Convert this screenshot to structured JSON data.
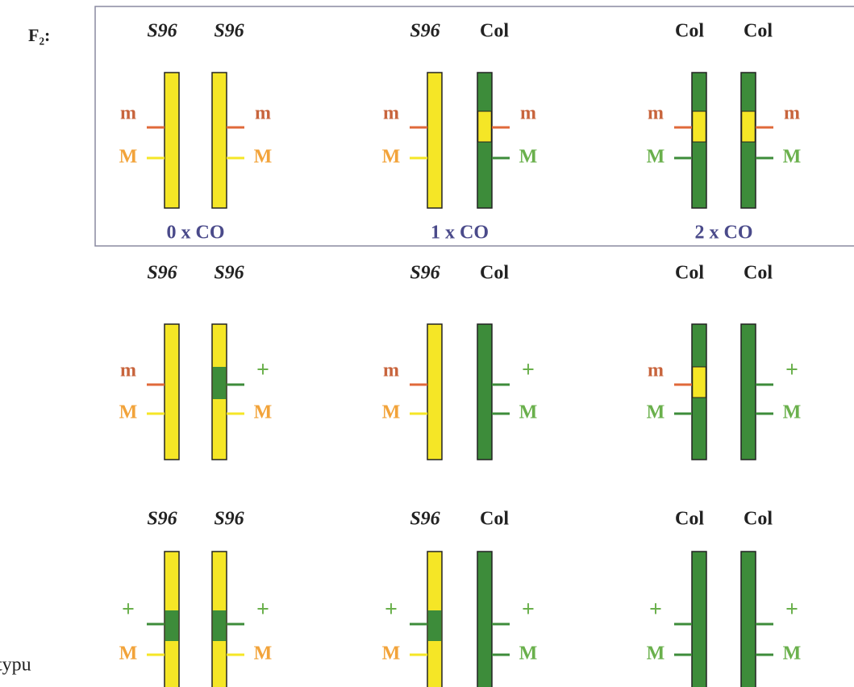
{
  "generation": "F₂:",
  "rows": [
    {
      "panels": [
        {
          "chromosomes": [
            {
              "genotype": "S96",
              "markers": [
                "m",
                "M"
              ]
            },
            {
              "genotype": "S96",
              "markers": [
                "m",
                "M"
              ]
            }
          ],
          "crossover": "0 x CO"
        },
        {
          "chromosomes": [
            {
              "genotype": "S96",
              "markers": [
                "m",
                "M"
              ]
            },
            {
              "genotype": "Col",
              "markers": [
                "m",
                "M"
              ]
            }
          ],
          "crossover": "1 x CO"
        },
        {
          "chromosomes": [
            {
              "genotype": "Col",
              "markers": [
                "m",
                "M"
              ]
            },
            {
              "genotype": "Col",
              "markers": [
                "m",
                "M"
              ]
            }
          ],
          "crossover": "2 x CO"
        }
      ]
    },
    {
      "panels": [
        {
          "chromosomes": [
            {
              "genotype": "S96",
              "markers": [
                "m",
                "M"
              ]
            },
            {
              "genotype": "S96",
              "markers": [
                "+",
                "M"
              ]
            }
          ]
        },
        {
          "chromosomes": [
            {
              "genotype": "S96",
              "markers": [
                "m",
                "M"
              ]
            },
            {
              "genotype": "Col",
              "markers": [
                "+",
                "M"
              ]
            }
          ]
        },
        {
          "chromosomes": [
            {
              "genotype": "Col",
              "markers": [
                "m",
                "M"
              ]
            },
            {
              "genotype": "Col",
              "markers": [
                "+",
                "M"
              ]
            }
          ]
        }
      ]
    },
    {
      "panels": [
        {
          "chromosomes": [
            {
              "genotype": "S96",
              "markers": [
                "+",
                "M"
              ]
            },
            {
              "genotype": "S96",
              "markers": [
                "+",
                "M"
              ]
            }
          ]
        },
        {
          "chromosomes": [
            {
              "genotype": "S96",
              "markers": [
                "+",
                "M"
              ]
            },
            {
              "genotype": "Col",
              "markers": [
                "+",
                "M"
              ]
            }
          ]
        },
        {
          "chromosomes": [
            {
              "genotype": "Col",
              "markers": [
                "+",
                "M"
              ]
            },
            {
              "genotype": "Col",
              "markers": [
                "+",
                "M"
              ]
            }
          ]
        }
      ]
    }
  ],
  "footer": "typu"
}
